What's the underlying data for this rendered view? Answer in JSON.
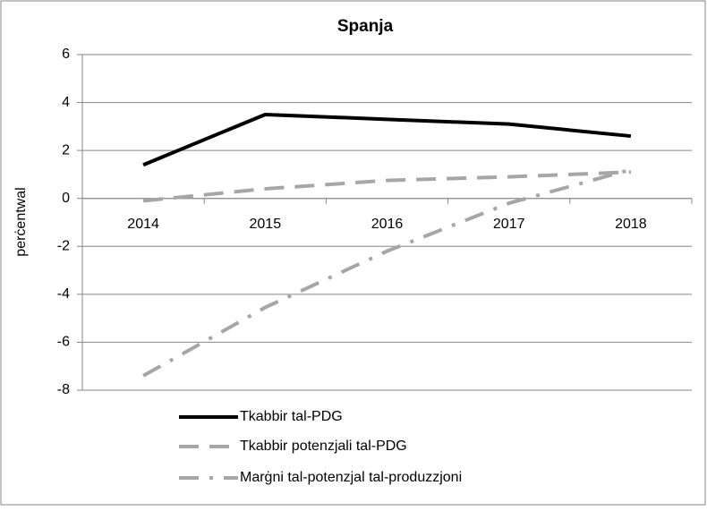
{
  "chart_data": {
    "type": "line",
    "title": "Spanja",
    "ylabel": "perċentwal",
    "categories": [
      "2014",
      "2015",
      "2016",
      "2017",
      "2018"
    ],
    "series": [
      {
        "name": "Tkabbir tal-PDG",
        "color": "#000000",
        "dash": "solid",
        "values": [
          1.4,
          3.5,
          3.3,
          3.1,
          2.6
        ]
      },
      {
        "name": "Tkabbir potenzjali tal-PDG",
        "color": "#a6a6a6",
        "dash": "dash",
        "values": [
          -0.1,
          0.4,
          0.75,
          0.9,
          1.1
        ]
      },
      {
        "name": "Marġni tal-potenzjal tal-produzzjoni",
        "color": "#a6a6a6",
        "dash": "dashdot",
        "values": [
          -7.4,
          -4.55,
          -2.2,
          -0.2,
          1.2
        ]
      }
    ],
    "ylim": [
      -8,
      6
    ],
    "yticks": [
      -8,
      -6,
      -4,
      -2,
      0,
      2,
      4,
      6
    ],
    "grid": true,
    "legend": "bottom"
  }
}
